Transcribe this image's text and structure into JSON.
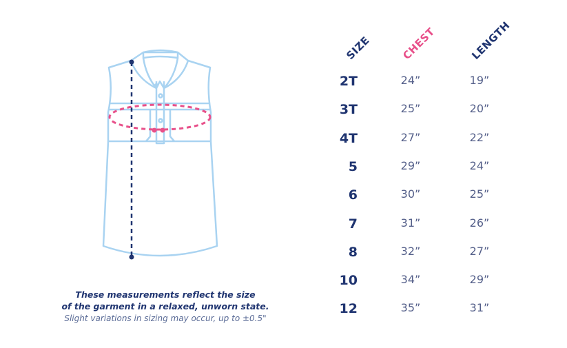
{
  "colors": {
    "outline": "#a9d3f1",
    "navy": "#1f3470",
    "pink": "#e8508a",
    "value": "#55608a"
  },
  "table": {
    "headers": {
      "size": "SIZE",
      "chest": "CHEST",
      "length": "LENGTH"
    },
    "rows": [
      {
        "size": "2T",
        "chest": "24”",
        "length": "19”"
      },
      {
        "size": "3T",
        "chest": "25”",
        "length": "20”"
      },
      {
        "size": "4T",
        "chest": "27”",
        "length": "22”"
      },
      {
        "size": "5",
        "chest": "29”",
        "length": "24”"
      },
      {
        "size": "6",
        "chest": "30”",
        "length": "25”"
      },
      {
        "size": "7",
        "chest": "31”",
        "length": "26”"
      },
      {
        "size": "8",
        "chest": "32”",
        "length": "27”"
      },
      {
        "size": "10",
        "chest": "34”",
        "length": "29”"
      },
      {
        "size": "12",
        "chest": "35”",
        "length": "31”"
      }
    ]
  },
  "notes": {
    "line1": "These measurements reflect the size",
    "line2": "of the garment in a relaxed, unworn state.",
    "line3": "Slight variations in sizing may occur, up to ±0.5\""
  }
}
